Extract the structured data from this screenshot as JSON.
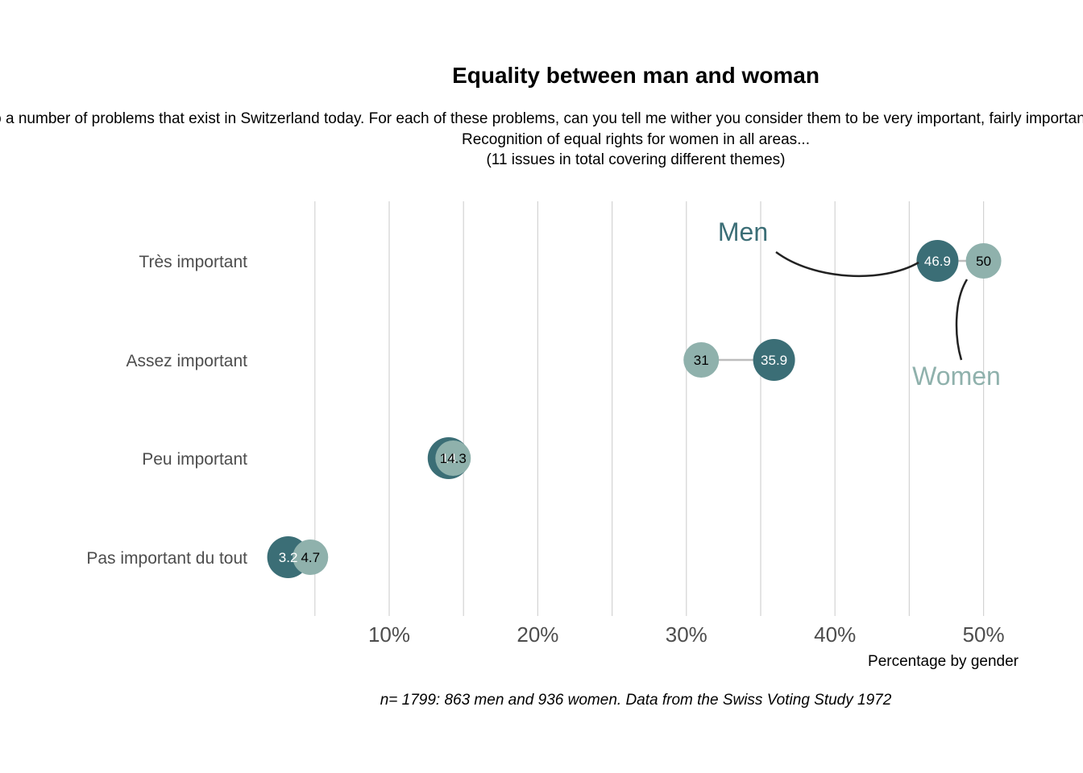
{
  "chart_data": {
    "type": "dumbbell",
    "title": "Equality between man and woman",
    "subtitle_lines": [
      "We now turn to a number of problems that exist in Switzerland today. For each of these problems, can you tell me wither you consider them to be very important, fairly important, not very important or not at all important.",
      "Recognition of equal rights for women in all areas...",
      "(11 issues in total covering different themes)"
    ],
    "categories": [
      "Très important",
      "Assez important",
      "Peu important",
      "Pas important du tout"
    ],
    "series": [
      {
        "name": "Men",
        "color": "#3b6e76",
        "label_color": "#ffffff",
        "values": [
          46.9,
          35.9,
          14.0,
          3.2
        ],
        "value_labels": [
          "46.9",
          "35.9",
          "14",
          "3.2"
        ]
      },
      {
        "name": "Women",
        "color": "#8fb1ac",
        "label_color": "#000000",
        "values": [
          50,
          31,
          14.3,
          4.7
        ],
        "value_labels": [
          "50",
          "31",
          "14.3",
          "4.7"
        ]
      }
    ],
    "xlim": [
      0,
      52
    ],
    "x_ticks": [
      10,
      20,
      30,
      40,
      50
    ],
    "x_tick_labels": [
      "10%",
      "20%",
      "30%",
      "40%",
      "50%"
    ],
    "x_gridlines": [
      5,
      10,
      15,
      20,
      25,
      30,
      35,
      40,
      45,
      50
    ],
    "xlabel": "Percentage by gender",
    "caption": "n= 1799: 863 men and 936 women. Data from the Swiss Voting Study 1972",
    "annotations": [
      {
        "text": "Men",
        "color": "#3b6e76"
      },
      {
        "text": "Women",
        "color": "#8fb1ac"
      }
    ],
    "connector_color": "#bdbdbd",
    "grid_color": "#d3d3d3"
  }
}
